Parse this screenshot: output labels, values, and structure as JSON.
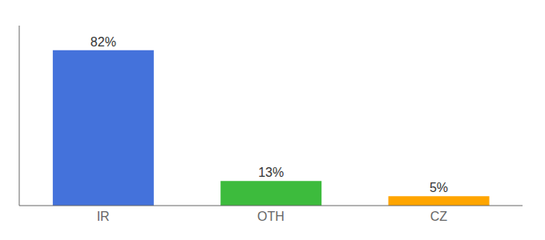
{
  "chart_data": {
    "type": "bar",
    "categories": [
      "IR",
      "OTH",
      "CZ"
    ],
    "values": [
      82,
      13,
      5
    ],
    "value_labels": [
      "82%",
      "13%",
      "5%"
    ],
    "colors": [
      "#4472db",
      "#3dbb3d",
      "#ffa500"
    ],
    "ylim": [
      0,
      95
    ],
    "data_labels": true,
    "tick_labels": "x",
    "grid": false
  }
}
